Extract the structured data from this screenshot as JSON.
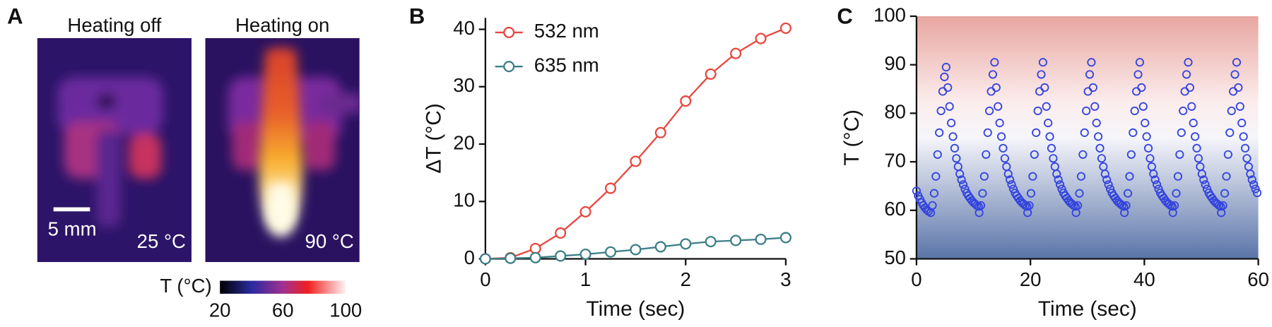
{
  "image_panel": {
    "label": "A",
    "images": [
      {
        "title": "Heating off",
        "temperature": "25 °C"
      },
      {
        "title": "Heating on",
        "temperature": "90 °C"
      }
    ],
    "scale_bar": "5 mm",
    "colorbar": {
      "label": "T (°C)",
      "lim": [
        20,
        100
      ],
      "ticks": [
        20,
        60,
        100
      ]
    }
  },
  "chart_data": [
    {
      "type": "line",
      "label": "B",
      "x": [
        0,
        0.25,
        0.5,
        0.75,
        1,
        1.25,
        1.5,
        1.75,
        2,
        2.25,
        2.5,
        2.75,
        3
      ],
      "series": [
        {
          "name": "532 nm",
          "color": "#e8473f",
          "values": [
            0,
            0.2,
            1.8,
            4.5,
            8.2,
            12.3,
            17,
            22,
            27.5,
            32.2,
            35.8,
            38.4,
            40.2
          ]
        },
        {
          "name": "635 nm",
          "color": "#3b7f86",
          "values": [
            0,
            0.1,
            0.2,
            0.5,
            0.8,
            1.2,
            1.6,
            2.1,
            2.6,
            3.0,
            3.2,
            3.4,
            3.7
          ]
        }
      ],
      "xlabel": "Time (sec)",
      "ylabel": "ΔT (°C)",
      "xlim": [
        0,
        3
      ],
      "ylim": [
        0,
        42
      ],
      "xticks": [
        0,
        1,
        2,
        3
      ],
      "yticks": [
        0,
        10,
        20,
        30,
        40
      ],
      "legend": "upper left"
    },
    {
      "type": "scatter",
      "label": "C",
      "color": "#3344dd",
      "xlabel": "Time (sec)",
      "ylabel": "T (°C)",
      "xlim": [
        0,
        60
      ],
      "ylim": [
        50,
        100
      ],
      "xticks": [
        0,
        20,
        40,
        60
      ],
      "yticks": [
        50,
        60,
        70,
        80,
        90,
        100
      ],
      "x": [
        0,
        0.3,
        0.6,
        0.9,
        1.2,
        1.5,
        1.8,
        2.1,
        2.5,
        2.8,
        3.1,
        3.4,
        3.7,
        4,
        4.3,
        4.6,
        4.9,
        5.2,
        5.5,
        5.8,
        6.1,
        6.4,
        6.7,
        7,
        7.3,
        7.6,
        7.9,
        8.2,
        8.5,
        8.8,
        9.1,
        9.4,
        9.7,
        10,
        10.3,
        10.6,
        10.9,
        11,
        11.3,
        11.6,
        11.9,
        12.2,
        12.5,
        12.8,
        13.1,
        13.4,
        13.7,
        14,
        14.3,
        14.6,
        14.9,
        15.2,
        15.5,
        15.8,
        16.1,
        16.4,
        16.7,
        17,
        17.3,
        17.6,
        17.9,
        18.2,
        18.5,
        18.8,
        19.1,
        19.4,
        19.5,
        19.8,
        20.1,
        20.4,
        20.7,
        21,
        21.3,
        21.6,
        21.9,
        22.2,
        22.5,
        22.8,
        23.1,
        23.4,
        23.7,
        24,
        24.3,
        24.6,
        24.9,
        25.2,
        25.5,
        25.8,
        26.1,
        26.4,
        26.7,
        27,
        27.3,
        27.6,
        27.9,
        28,
        28.3,
        28.6,
        28.9,
        29.2,
        29.5,
        29.8,
        30.1,
        30.4,
        30.7,
        31,
        31.3,
        31.6,
        31.9,
        32.2,
        32.5,
        32.8,
        33.1,
        33.4,
        33.7,
        34,
        34.3,
        34.6,
        34.9,
        35.2,
        35.5,
        35.8,
        36.1,
        36.4,
        36.5,
        36.8,
        37.1,
        37.4,
        37.7,
        38,
        38.3,
        38.6,
        38.9,
        39.2,
        39.5,
        39.8,
        40.1,
        40.4,
        40.7,
        41,
        41.3,
        41.6,
        41.9,
        42.2,
        42.5,
        42.8,
        43.1,
        43.4,
        43.7,
        44,
        44.3,
        44.6,
        44.9,
        45,
        45.3,
        45.6,
        45.9,
        46.2,
        46.5,
        46.8,
        47.1,
        47.4,
        47.7,
        48,
        48.3,
        48.6,
        48.9,
        49.2,
        49.5,
        49.8,
        50.1,
        50.4,
        50.7,
        51,
        51.3,
        51.6,
        51.9,
        52.2,
        52.5,
        52.8,
        53.1,
        53.4,
        53.5,
        53.8,
        54.1,
        54.4,
        54.7,
        55,
        55.3,
        55.6,
        55.9,
        56.2,
        56.5,
        56.8,
        57.1,
        57.4,
        57.7,
        58,
        58.3,
        58.6,
        58.9,
        59.2,
        59.5,
        59.8
      ],
      "values": [
        64,
        63,
        62.3,
        61.6,
        61,
        60.5,
        60.1,
        59.8,
        59.5,
        61,
        63.5,
        67,
        71.5,
        76,
        80.5,
        84.5,
        87.5,
        89.5,
        85.3,
        81.4,
        78,
        75.2,
        72.8,
        70.7,
        69,
        67.5,
        66.3,
        65.3,
        64.4,
        63.6,
        63,
        62.5,
        62,
        61.6,
        61.3,
        61,
        60.8,
        59.5,
        61,
        63.5,
        67,
        71.5,
        76,
        80.5,
        84.5,
        88,
        90.5,
        85.3,
        81.4,
        78,
        75.2,
        72.8,
        70.7,
        69,
        67.5,
        66.3,
        65.3,
        64.4,
        63.6,
        63,
        62.5,
        62,
        61.6,
        61.3,
        61,
        60.8,
        59.5,
        61,
        63.5,
        67,
        71.5,
        76,
        80.5,
        84.5,
        88,
        90.5,
        85.3,
        81.4,
        78,
        75.2,
        72.8,
        70.7,
        69,
        67.5,
        66.3,
        65.3,
        64.4,
        63.6,
        63,
        62.5,
        62,
        61.6,
        61.3,
        61,
        60.8,
        59.5,
        61,
        63.5,
        67,
        71.5,
        76,
        80.5,
        84.5,
        88,
        90.5,
        85.3,
        81.4,
        78,
        75.2,
        72.8,
        70.7,
        69,
        67.5,
        66.3,
        65.3,
        64.4,
        63.6,
        63,
        62.5,
        62,
        61.6,
        61.3,
        61,
        60.8,
        59.5,
        61,
        63.5,
        67,
        71.5,
        76,
        80.5,
        84.5,
        88,
        90.5,
        85.3,
        81.4,
        78,
        75.2,
        72.8,
        70.7,
        69,
        67.5,
        66.3,
        65.3,
        64.4,
        63.6,
        63,
        62.5,
        62,
        61.6,
        61.3,
        61,
        60.8,
        59.5,
        61,
        63.5,
        67,
        71.5,
        76,
        80.5,
        84.5,
        88,
        90.5,
        85.3,
        81.4,
        78,
        75.2,
        72.8,
        70.7,
        69,
        67.5,
        66.3,
        65.3,
        64.4,
        63.6,
        63,
        62.5,
        62,
        61.6,
        61.3,
        61,
        60.8,
        59.5,
        61,
        63.5,
        67,
        71.5,
        76,
        80.5,
        84.5,
        88,
        90.5,
        85.3,
        81.4,
        78,
        75.2,
        72.8,
        70.7,
        69,
        67.5,
        66.3,
        65.3,
        64.4,
        63.6
      ]
    }
  ]
}
